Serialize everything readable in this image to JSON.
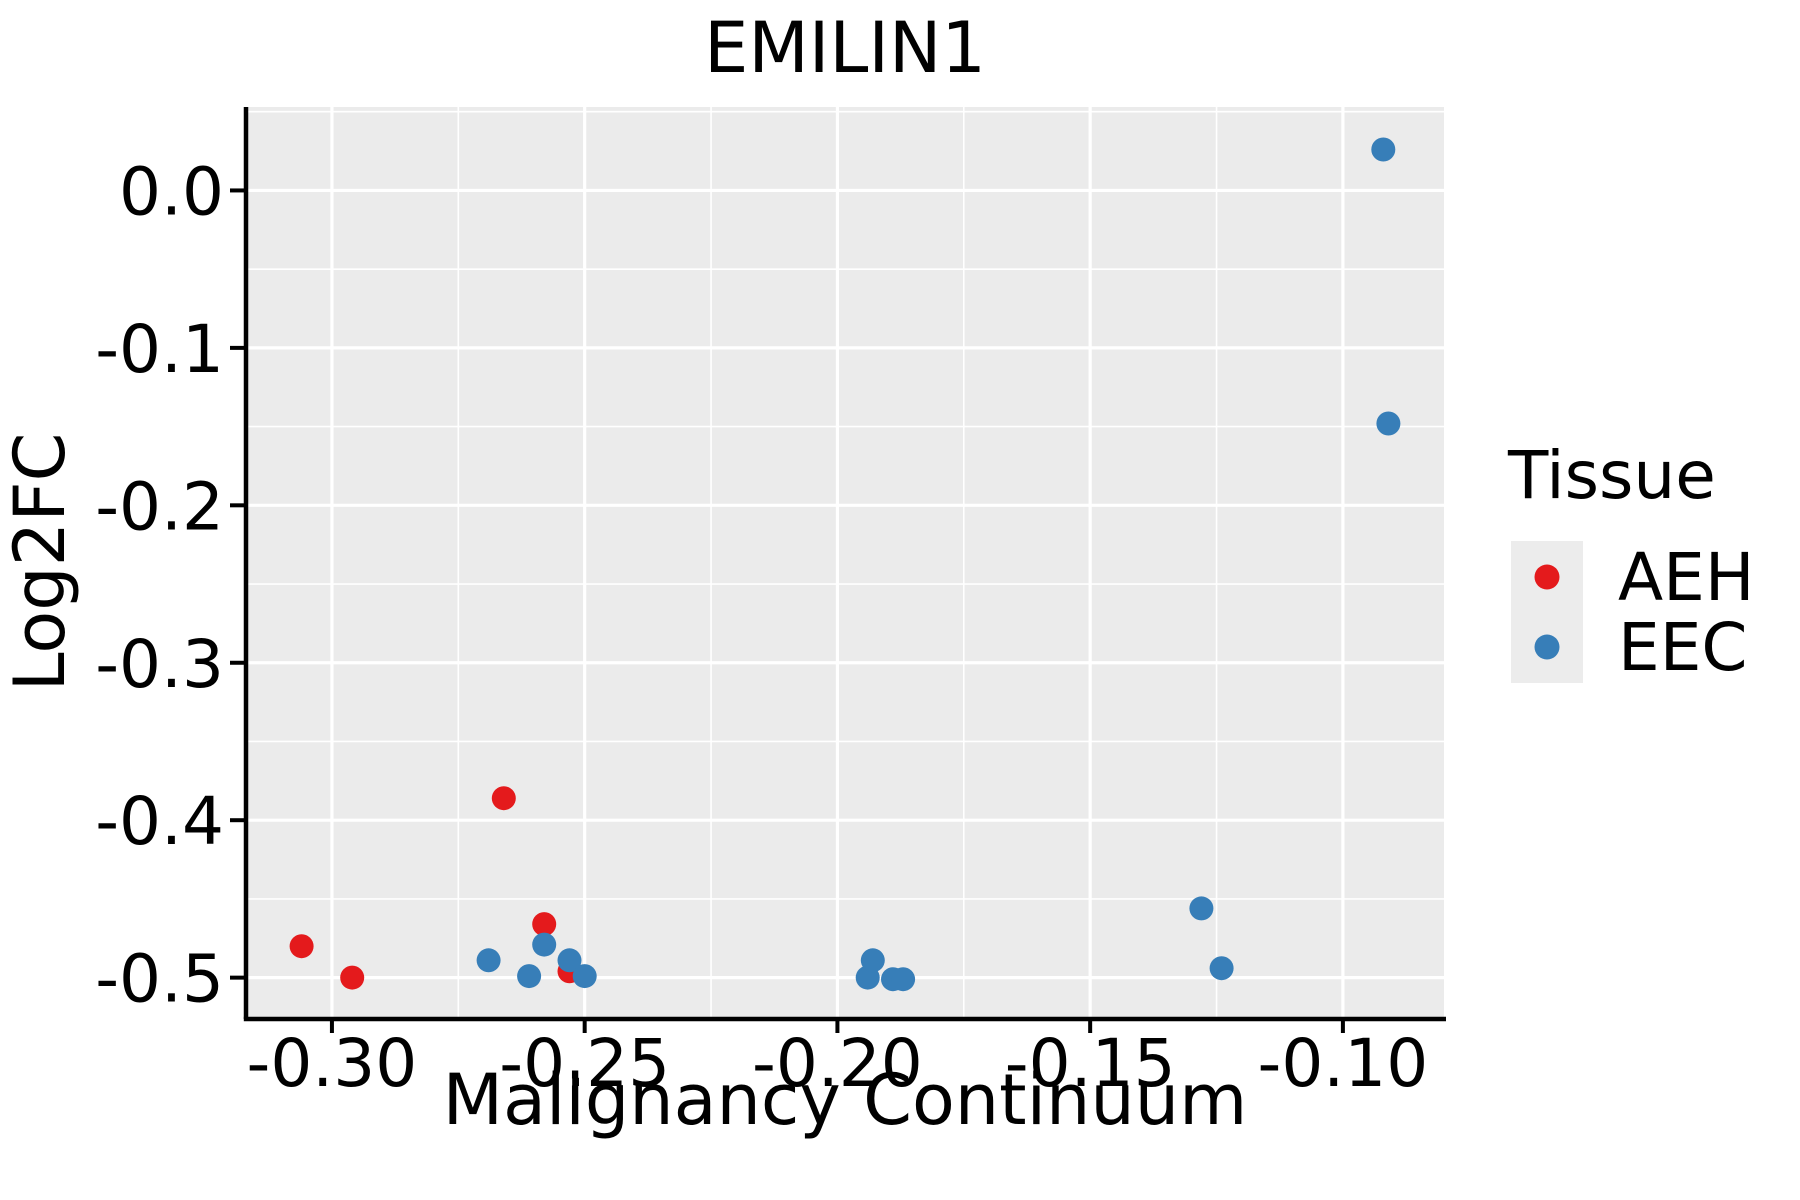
{
  "chart_data": {
    "type": "scatter",
    "title": "EMILIN1",
    "xlabel": "Malignancy Continuum",
    "ylabel": "Log2FC",
    "xlim": [
      -0.317,
      -0.08
    ],
    "ylim": [
      -0.525,
      0.053
    ],
    "grid": true,
    "x_ticks": {
      "values": [
        -0.3,
        -0.25,
        -0.2,
        -0.15,
        -0.1
      ],
      "labels": [
        "-0.30",
        "-0.25",
        "-0.20",
        "-0.15",
        "-0.10"
      ]
    },
    "y_ticks": {
      "values": [
        0.0,
        -0.1,
        -0.2,
        -0.3,
        -0.4,
        -0.5
      ],
      "labels": [
        "0.0",
        "-0.1",
        "-0.2",
        "-0.3",
        "-0.4",
        "-0.5"
      ]
    },
    "legend": {
      "title": "Tissue",
      "position": "right",
      "entries": [
        {
          "label": "AEH",
          "color": "#E41A1C"
        },
        {
          "label": "EEC",
          "color": "#377EB8"
        }
      ]
    },
    "series": [
      {
        "name": "AEH",
        "color": "#E41A1C",
        "points": [
          [
            -0.306,
            -0.48
          ],
          [
            -0.296,
            -0.5
          ],
          [
            -0.266,
            -0.386
          ],
          [
            -0.258,
            -0.466
          ],
          [
            -0.253,
            -0.496
          ]
        ]
      },
      {
        "name": "EEC",
        "color": "#377EB8",
        "points": [
          [
            -0.269,
            -0.489
          ],
          [
            -0.261,
            -0.499
          ],
          [
            -0.258,
            -0.479
          ],
          [
            -0.253,
            -0.489
          ],
          [
            -0.25,
            -0.499
          ],
          [
            -0.194,
            -0.5
          ],
          [
            -0.193,
            -0.489
          ],
          [
            -0.189,
            -0.501
          ],
          [
            -0.187,
            -0.501
          ],
          [
            -0.128,
            -0.456
          ],
          [
            -0.124,
            -0.494
          ],
          [
            -0.092,
            0.026
          ],
          [
            -0.091,
            -0.148
          ]
        ]
      }
    ],
    "styles": {
      "panel_background": "#EBEBEB",
      "grid_color": "#FFFFFF",
      "axis_color": "#000000",
      "legend_key_background": "#ECECEC"
    }
  }
}
